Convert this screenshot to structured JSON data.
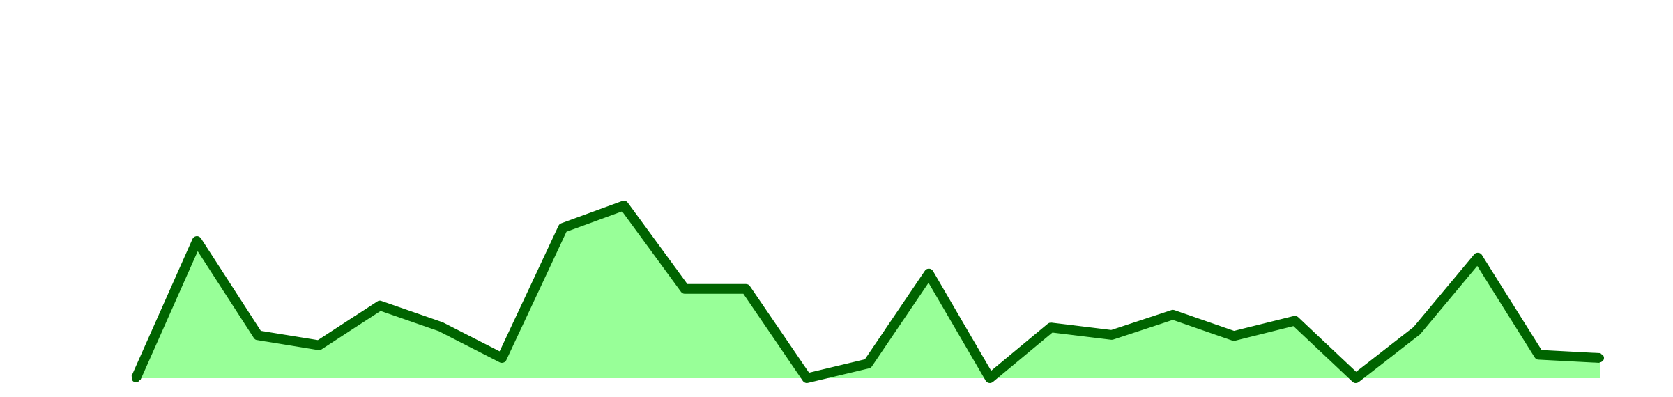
{
  "chart_data": {
    "type": "area",
    "title": "",
    "xlabel": "",
    "ylabel": "",
    "grid": false,
    "legend": "none",
    "x": [
      0,
      1,
      2,
      3,
      4,
      5,
      6,
      7,
      8,
      9,
      10,
      11,
      12,
      13,
      14,
      15,
      16,
      17,
      18,
      19,
      20,
      21,
      22,
      23,
      24
    ],
    "ylim": [
      0,
      10
    ],
    "series": [
      {
        "values": [
          0.0,
          3.87,
          1.21,
          0.93,
          2.05,
          1.45,
          0.57,
          4.24,
          4.87,
          2.52,
          2.52,
          0.0,
          0.41,
          2.95,
          0.0,
          1.43,
          1.22,
          1.79,
          1.19,
          1.62,
          0.0,
          1.34,
          3.4,
          0.66,
          0.57
        ]
      }
    ],
    "colors": {
      "line": "#006400",
      "fill": "#98ff98"
    }
  }
}
